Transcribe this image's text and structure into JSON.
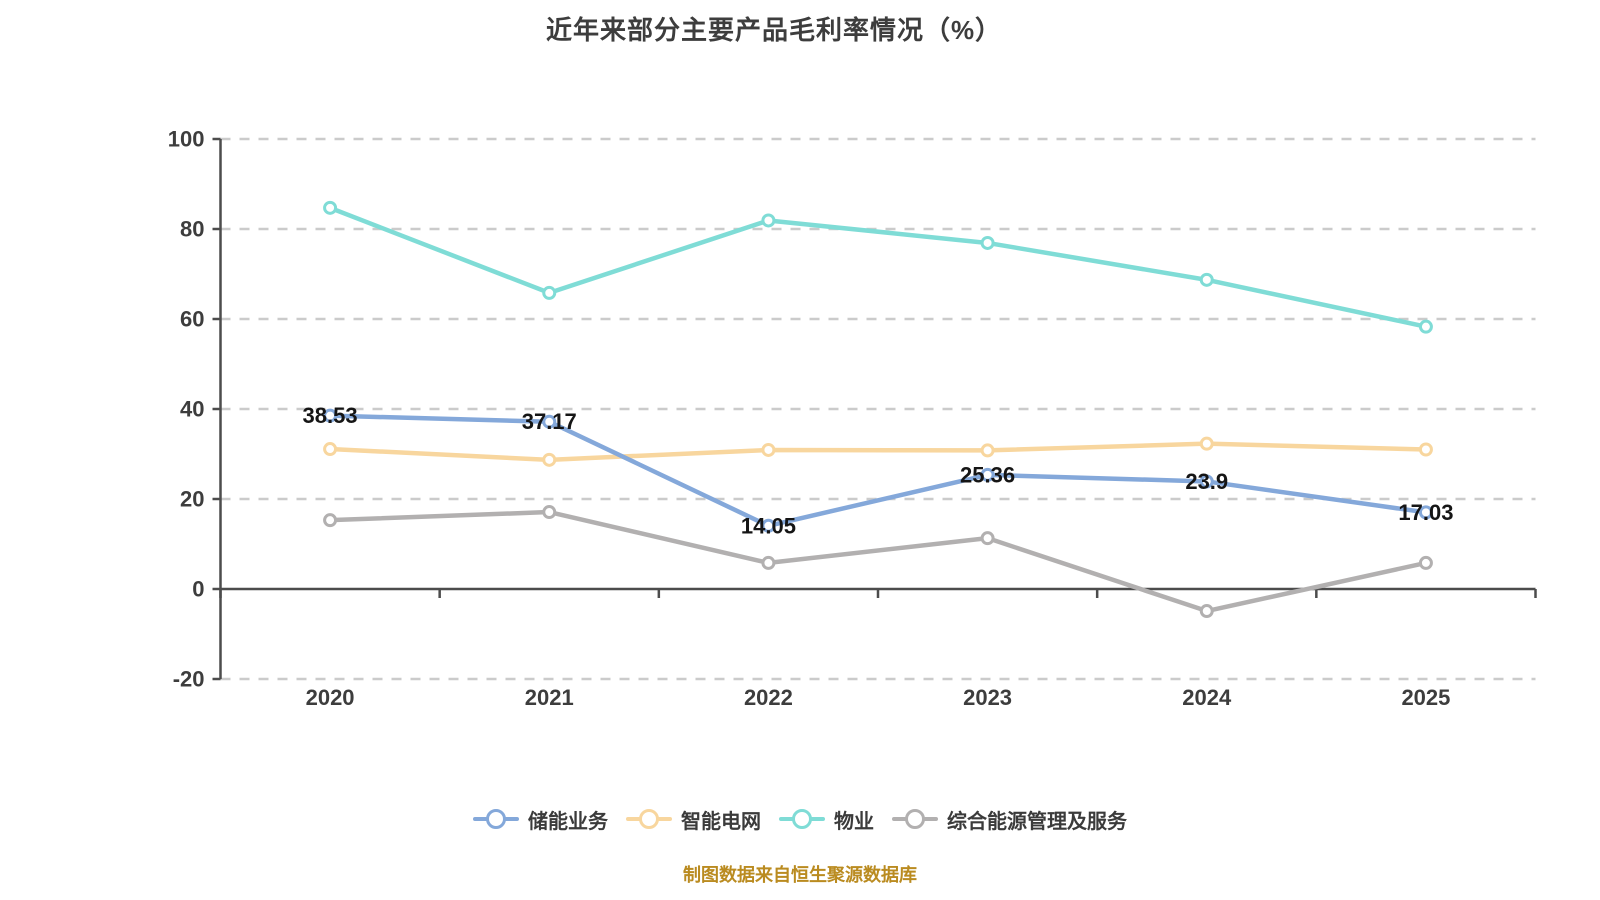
{
  "title": "近年来部分主要产品毛利率情况（%）",
  "footer": "制图数据来自恒生聚源数据库",
  "colors": {
    "title_text": "#3d3d3d",
    "axis_line": "#4c4c4c",
    "axis_text": "#3d3d3d",
    "gridline": "#cbcbcb",
    "data_label_text": "#151515",
    "footer_text": "#ba8b20",
    "background": "#ffffff"
  },
  "chart_data": {
    "type": "line",
    "title": "近年来部分主要产品毛利率情况（%）",
    "x_categories": [
      "2020",
      "2021",
      "2022",
      "2023",
      "2024",
      "2025"
    ],
    "y_axis": {
      "min": -20,
      "max": 100,
      "ticks": [
        100,
        80,
        60,
        40,
        20,
        0,
        -20
      ],
      "grid": "dashed-horizontal"
    },
    "legend_position": "bottom",
    "series": [
      {
        "name": "储能业务",
        "color": "#84a8da",
        "values": [
          38.53,
          37.17,
          14.05,
          25.36,
          23.9,
          17.03
        ],
        "point_labels": [
          "38.53",
          "37.17",
          "14.05",
          "25.36",
          "23.9",
          "17.03"
        ]
      },
      {
        "name": "智能电网",
        "color": "#f8d69e",
        "values": [
          31.1,
          28.7,
          30.9,
          30.8,
          32.3,
          31.0
        ],
        "point_labels": null
      },
      {
        "name": "物业",
        "color": "#7fdcd6",
        "values": [
          84.7,
          65.8,
          81.9,
          76.9,
          68.7,
          58.3
        ],
        "point_labels": null
      },
      {
        "name": "综合能源管理及服务",
        "color": "#b2b0b0",
        "values": [
          15.3,
          17.1,
          5.8,
          11.3,
          -4.9,
          5.8
        ],
        "point_labels": null
      }
    ]
  }
}
